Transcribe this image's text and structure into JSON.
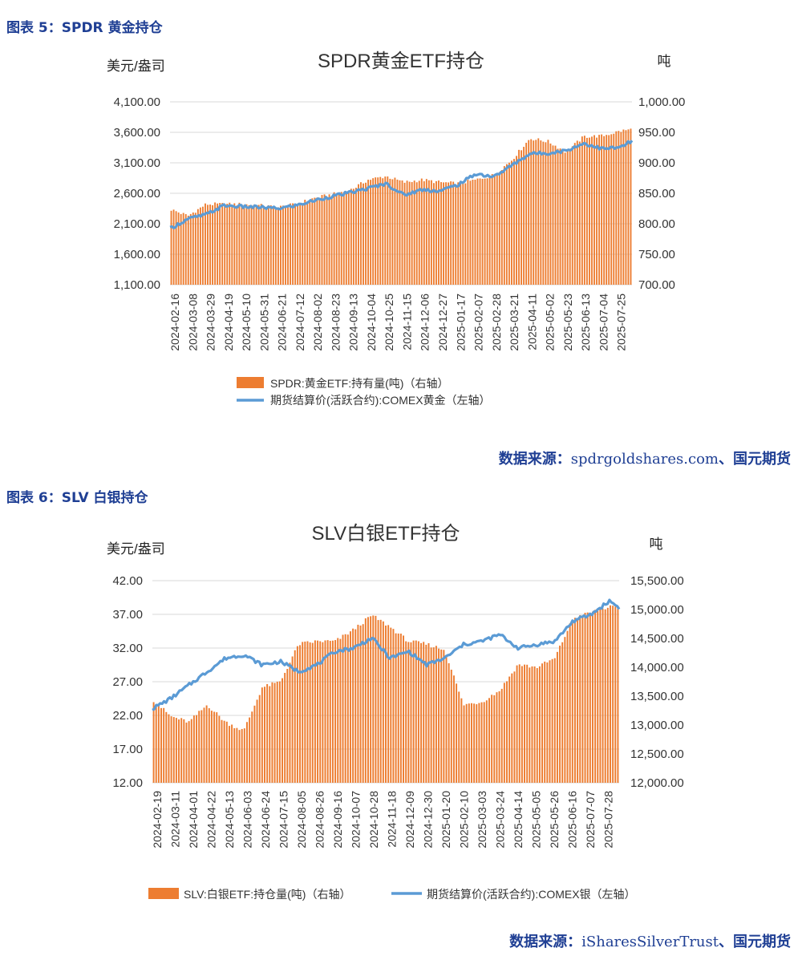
{
  "figure5": {
    "caption": "图表 5：SPDR 黄金持仓",
    "source_prefix": "数据来源：",
    "source_url": "spdrgoldshares.com",
    "source_suffix": "、国元期货"
  },
  "figure6": {
    "caption": "图表 6：SLV 白银持仓",
    "source_prefix": "数据来源：",
    "source_url": "iSharesSilverTrust",
    "source_suffix": "、国元期货"
  },
  "colors": {
    "bar": "#ed7d31",
    "line": "#5b9bd5",
    "caption": "#1f3f94",
    "grid": "#d9d9d9",
    "text": "#333333"
  },
  "chart_data": [
    {
      "type": "bar",
      "title": "SPDR黄金ETF持仓",
      "ylabel_left": "美元/盎司",
      "ylabel_right": "吨",
      "left_axis": {
        "min": 1100,
        "max": 4100,
        "ticks": [
          "1,100.00",
          "1,600.00",
          "2,100.00",
          "2,600.00",
          "3,100.00",
          "3,600.00",
          "4,100.00"
        ]
      },
      "right_axis": {
        "min": 700,
        "max": 1000,
        "ticks": [
          "700.00",
          "750.00",
          "800.00",
          "850.00",
          "900.00",
          "950.00",
          "1,000.00"
        ]
      },
      "xticks": [
        "2024-02-16",
        "2024-03-08",
        "2024-03-29",
        "2024-04-19",
        "2024-05-10",
        "2024-05-31",
        "2024-06-21",
        "2024-07-12",
        "2024-08-02",
        "2024-08-23",
        "2024-09-13",
        "2024-10-04",
        "2024-10-25",
        "2024-11-15",
        "2024-12-06",
        "2024-12-27",
        "2025-01-17",
        "2025-02-07",
        "2025-02-28",
        "2025-03-21",
        "2025-04-11",
        "2025-05-02",
        "2025-05-23",
        "2025-06-13",
        "2025-07-04",
        "2025-07-25"
      ],
      "grid": true,
      "legend_position": "bottom",
      "series": [
        {
          "name": "SPDR:黄金ETF:持有量(吨)（右轴）",
          "kind": "bar",
          "axis": "right",
          "x": [
            "2024-02-16",
            "2024-03-08",
            "2024-03-29",
            "2024-04-19",
            "2024-05-10",
            "2024-05-31",
            "2024-06-21",
            "2024-07-12",
            "2024-08-02",
            "2024-08-23",
            "2024-09-13",
            "2024-10-04",
            "2024-10-25",
            "2024-11-15",
            "2024-12-06",
            "2024-12-27",
            "2025-01-17",
            "2025-02-07",
            "2025-02-28",
            "2025-03-21",
            "2025-04-11",
            "2025-05-02",
            "2025-05-23",
            "2025-06-13",
            "2025-07-04",
            "2025-07-25",
            "2025-08-08"
          ],
          "values": [
            824,
            813,
            832,
            832,
            832,
            830,
            827,
            832,
            842,
            848,
            855,
            872,
            878,
            868,
            872,
            868,
            866,
            872,
            880,
            905,
            940,
            935,
            918,
            943,
            944,
            952,
            955
          ]
        },
        {
          "name": "期货结算价(活跃合约):COMEX黄金（左轴）",
          "kind": "line",
          "axis": "left",
          "x": [
            "2024-02-16",
            "2024-03-08",
            "2024-03-29",
            "2024-04-19",
            "2024-05-10",
            "2024-05-31",
            "2024-06-21",
            "2024-07-12",
            "2024-08-02",
            "2024-08-23",
            "2024-09-13",
            "2024-10-04",
            "2024-10-25",
            "2024-11-15",
            "2024-12-06",
            "2024-12-27",
            "2025-01-17",
            "2025-02-07",
            "2025-02-28",
            "2025-03-21",
            "2025-04-11",
            "2025-05-02",
            "2025-05-23",
            "2025-06-13",
            "2025-07-04",
            "2025-07-25",
            "2025-08-08"
          ],
          "values": [
            2020,
            2180,
            2250,
            2400,
            2380,
            2370,
            2350,
            2400,
            2480,
            2550,
            2610,
            2680,
            2760,
            2570,
            2660,
            2640,
            2740,
            2920,
            2870,
            3060,
            3250,
            3260,
            3300,
            3420,
            3330,
            3350,
            3460
          ]
        }
      ]
    },
    {
      "type": "bar",
      "title": "SLV白银ETF持仓",
      "ylabel_left": "美元/盎司",
      "ylabel_right": "吨",
      "left_axis": {
        "min": 12,
        "max": 42,
        "ticks": [
          "12.00",
          "17.00",
          "22.00",
          "27.00",
          "32.00",
          "37.00",
          "42.00"
        ]
      },
      "right_axis": {
        "min": 12000,
        "max": 15500,
        "ticks": [
          "12,000.00",
          "12,500.00",
          "13,000.00",
          "13,500.00",
          "14,000.00",
          "14,500.00",
          "15,000.00",
          "15,500.00"
        ]
      },
      "xticks": [
        "2024-02-19",
        "2024-03-11",
        "2024-04-01",
        "2024-04-22",
        "2024-05-13",
        "2024-06-03",
        "2024-06-24",
        "2024-07-15",
        "2024-08-05",
        "2024-08-26",
        "2024-09-16",
        "2024-10-07",
        "2024-10-28",
        "2024-11-18",
        "2024-12-09",
        "2024-12-30",
        "2025-01-20",
        "2025-02-10",
        "2025-03-03",
        "2025-03-24",
        "2025-04-14",
        "2025-05-05",
        "2025-05-26",
        "2025-06-16",
        "2025-07-07",
        "2025-07-28"
      ],
      "grid": true,
      "legend_position": "bottom",
      "series": [
        {
          "name": "SLV:白银ETF:持仓量(吨)（右轴）",
          "kind": "bar",
          "axis": "right",
          "x": [
            "2024-02-19",
            "2024-03-11",
            "2024-04-01",
            "2024-04-22",
            "2024-05-13",
            "2024-06-03",
            "2024-06-24",
            "2024-07-15",
            "2024-08-05",
            "2024-08-26",
            "2024-09-16",
            "2024-10-07",
            "2024-10-28",
            "2024-11-18",
            "2024-12-09",
            "2024-12-30",
            "2025-01-20",
            "2025-02-10",
            "2025-03-03",
            "2025-03-24",
            "2025-04-14",
            "2025-05-05",
            "2025-05-26",
            "2025-06-16",
            "2025-07-07",
            "2025-07-28",
            "2025-08-08"
          ],
          "values": [
            13450,
            13150,
            13050,
            13350,
            13050,
            12900,
            13650,
            13750,
            14400,
            14450,
            14450,
            14650,
            14900,
            14700,
            14450,
            14400,
            14300,
            13350,
            13400,
            13600,
            14050,
            14000,
            14150,
            14850,
            14950,
            15050,
            15000
          ]
        },
        {
          "name": "期货结算价(活跃合约):COMEX银（左轴）",
          "kind": "line",
          "axis": "left",
          "x": [
            "2024-02-19",
            "2024-03-11",
            "2024-04-01",
            "2024-04-22",
            "2024-05-13",
            "2024-06-03",
            "2024-06-24",
            "2024-07-15",
            "2024-08-05",
            "2024-08-26",
            "2024-09-16",
            "2024-10-07",
            "2024-10-28",
            "2024-11-18",
            "2024-12-09",
            "2024-12-30",
            "2025-01-20",
            "2025-02-10",
            "2025-03-03",
            "2025-03-24",
            "2025-04-14",
            "2025-05-05",
            "2025-05-26",
            "2025-06-16",
            "2025-07-07",
            "2025-07-28",
            "2025-08-08"
          ],
          "values": [
            23.0,
            24.5,
            26.5,
            28.5,
            30.5,
            31.0,
            29.5,
            30.0,
            28.5,
            29.5,
            31.5,
            32.0,
            33.5,
            30.5,
            31.5,
            29.5,
            30.5,
            32.5,
            33.0,
            34.0,
            32.0,
            32.5,
            33.0,
            36.0,
            37.0,
            39.0,
            38.0
          ]
        }
      ]
    }
  ]
}
